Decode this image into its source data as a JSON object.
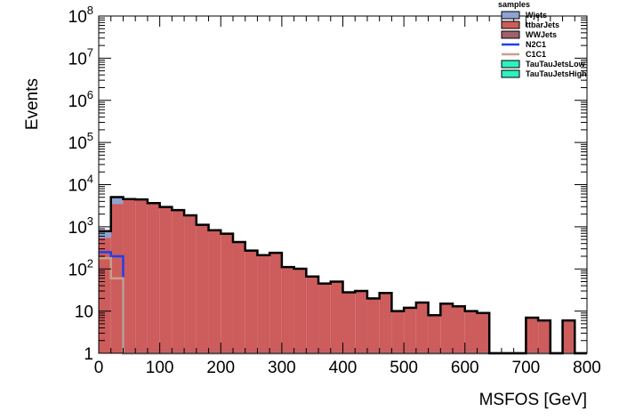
{
  "chart_data": {
    "type": "histogram-stacked",
    "title": "",
    "xlabel": "MSFOS [GeV]",
    "ylabel": "Events",
    "xlim": [
      0,
      800
    ],
    "ylim": [
      1,
      100000000
    ],
    "yscale": "log",
    "bin_width": 20,
    "bin_edges_start": 0,
    "x_ticks": [
      "0",
      "100",
      "200",
      "300",
      "400",
      "500",
      "600",
      "700",
      "800"
    ],
    "y_ticks": [
      {
        "value": 1,
        "base": "1",
        "exp": ""
      },
      {
        "value": 10,
        "base": "10",
        "exp": ""
      },
      {
        "value": 100,
        "base": "10",
        "exp": "2"
      },
      {
        "value": 1000,
        "base": "10",
        "exp": "3"
      },
      {
        "value": 10000,
        "base": "10",
        "exp": "4"
      },
      {
        "value": 100000,
        "base": "10",
        "exp": "5"
      },
      {
        "value": 1000000,
        "base": "10",
        "exp": "6"
      },
      {
        "value": 10000000,
        "base": "10",
        "exp": "7"
      },
      {
        "value": 100000000,
        "base": "10",
        "exp": "8"
      }
    ],
    "legend": {
      "title": "samples",
      "position": "top-right",
      "entries": [
        {
          "label": "Wjets",
          "kind": "fill",
          "fill": "#8ea3d4",
          "stroke": "#000000"
        },
        {
          "label": "ttbarJets",
          "kind": "fill",
          "fill": "#cd5c5c",
          "stroke": "#000000"
        },
        {
          "label": "WWJets",
          "kind": "fill",
          "fill": "#a0626d",
          "stroke": "#000000"
        },
        {
          "label": "N2C1",
          "kind": "line",
          "stroke": "#1e3ff0"
        },
        {
          "label": "C1C1",
          "kind": "line",
          "stroke": "#c8a088"
        },
        {
          "label": "TauTauJetsLow",
          "kind": "fill",
          "fill": "#2ef0c0",
          "stroke": "#000000"
        },
        {
          "label": "TauTauJetsHigh",
          "kind": "fill",
          "fill": "#2ef0c0",
          "stroke": "#000000"
        }
      ]
    },
    "series": [
      {
        "name": "ttbarJets",
        "color": "#cd5c5c",
        "values": [
          550,
          3500,
          4300,
          4400,
          3600,
          2900,
          2450,
          1850,
          1100,
          820,
          680,
          430,
          270,
          210,
          240,
          110,
          100,
          65,
          45,
          50,
          28,
          30,
          20,
          27,
          10,
          12,
          16,
          8,
          15,
          13,
          10,
          9,
          0,
          0,
          0,
          7,
          6,
          0,
          6,
          0
        ]
      },
      {
        "name": "Wjets",
        "color": "#8ea3d4",
        "values": [
          200,
          1500,
          150,
          0,
          0,
          0,
          0,
          0,
          0,
          0,
          0,
          0,
          0,
          0,
          0,
          0,
          0,
          0,
          0,
          0,
          0,
          0,
          0,
          0,
          0,
          0,
          0,
          0,
          0,
          0,
          0,
          0,
          0,
          0,
          0,
          0,
          0,
          0,
          0,
          0
        ]
      },
      {
        "name": "WWJets",
        "color": "#a0626d",
        "values": [
          40,
          60,
          80,
          70,
          55,
          40,
          35,
          25,
          15,
          10,
          8,
          5,
          3,
          2,
          2,
          1,
          1,
          1,
          0,
          0,
          0,
          0,
          0,
          0,
          0,
          0,
          0,
          0,
          0,
          0,
          0,
          0,
          0,
          0,
          0,
          0,
          0,
          0,
          0,
          0
        ]
      }
    ],
    "overlays": [
      {
        "name": "N2C1",
        "color": "#1e3ff0",
        "values": [
          250,
          200,
          0,
          0,
          0,
          0,
          0,
          0,
          0,
          0,
          0,
          0,
          0,
          0,
          0,
          0,
          0,
          0,
          0,
          0,
          0,
          0,
          0,
          0,
          0,
          0,
          0,
          0,
          0,
          0,
          0,
          0,
          0,
          0,
          0,
          0,
          0,
          0,
          0,
          0
        ]
      },
      {
        "name": "C1C1",
        "color": "#c8a088",
        "values": [
          180,
          60,
          0,
          0,
          0,
          0,
          0,
          0,
          0,
          0,
          0,
          0,
          0,
          0,
          0,
          0,
          0,
          0,
          0,
          0,
          0,
          0,
          0,
          0,
          0,
          0,
          0,
          0,
          0,
          0,
          0,
          0,
          0,
          0,
          0,
          0,
          0,
          0,
          0,
          0
        ]
      }
    ]
  }
}
